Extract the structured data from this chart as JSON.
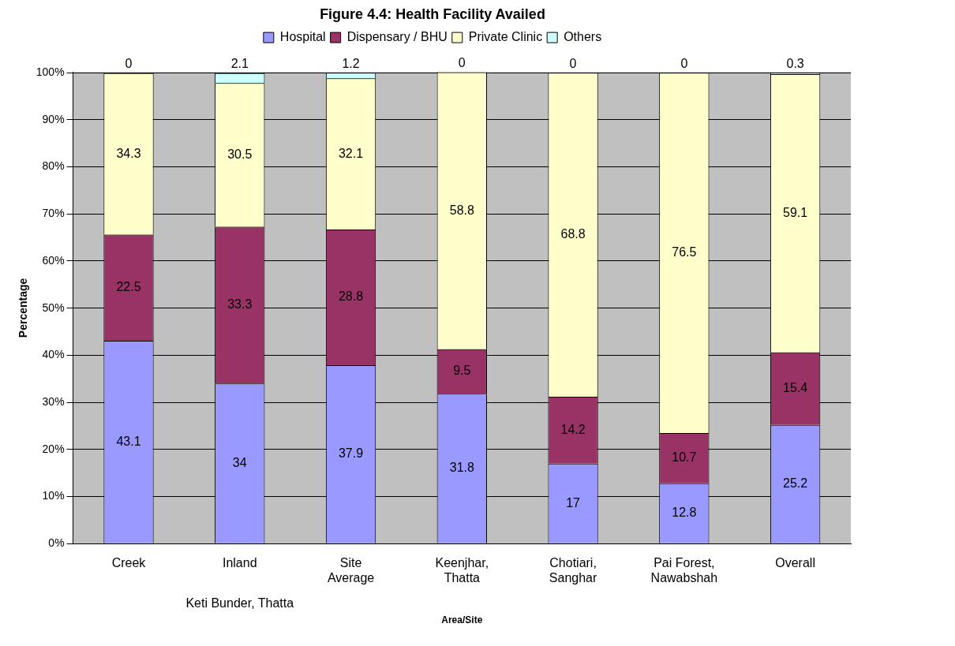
{
  "chart_data": {
    "type": "bar",
    "stacked": true,
    "title": "Figure 4.4: Health Facility Availed",
    "xlabel": "Area/Site",
    "ylabel": "Percentage",
    "categories": [
      "Creek",
      "Inland",
      "Site Average",
      "Keenjhar, Thatta",
      "Chotiari, Sanghar",
      "Pai Forest, Nawabshah",
      "Overall"
    ],
    "series": [
      {
        "name": "Hospital",
        "color": "#9999ff",
        "values": [
          43.1,
          34,
          37.9,
          31.8,
          17,
          12.8,
          25.2
        ]
      },
      {
        "name": "Dispensary / BHU",
        "color": "#993366",
        "values": [
          22.5,
          33.3,
          28.8,
          9.5,
          14.2,
          10.7,
          15.4
        ]
      },
      {
        "name": "Private Clinic",
        "color": "#ffffcc",
        "values": [
          34.3,
          30.5,
          32.1,
          58.8,
          68.8,
          76.5,
          59.1
        ]
      },
      {
        "name": "Others",
        "color": "#ccffff",
        "values": [
          0,
          2.1,
          1.2,
          0,
          0,
          0,
          0.3
        ]
      }
    ],
    "ylim": [
      0,
      100.1
    ],
    "yticks": [
      {
        "value": 0,
        "label": "0%"
      },
      {
        "value": 10,
        "label": "10%"
      },
      {
        "value": 20,
        "label": "20%"
      },
      {
        "value": 30,
        "label": "30%"
      },
      {
        "value": 40,
        "label": "40%"
      },
      {
        "value": 50,
        "label": "50%"
      },
      {
        "value": 60,
        "label": "60%"
      },
      {
        "value": 70,
        "label": "70%"
      },
      {
        "value": 80,
        "label": "80%"
      },
      {
        "value": 90,
        "label": "90%"
      },
      {
        "value": 100,
        "label": "100%"
      }
    ],
    "annotations": [
      "Keti Bunder, Thatta"
    ],
    "grid": "y",
    "legend": "top",
    "data_labels": true
  }
}
